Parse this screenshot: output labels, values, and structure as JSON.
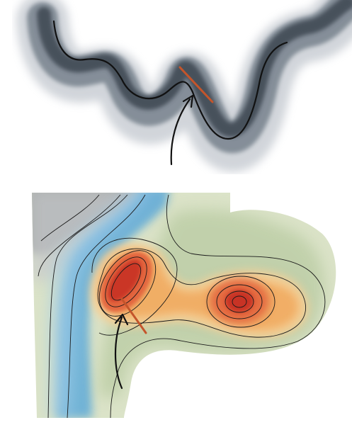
{
  "figure": {
    "panels": [
      {
        "id": "ribbon",
        "description_name": "ink-wash-ribbon",
        "colors": {
          "wash_dark": "#3c4651",
          "wash_mid": "#7d8792",
          "wash_light": "#c9ced4",
          "edge_line": "#111111",
          "marker": "#c4552b",
          "arrow": "#111111"
        }
      },
      {
        "id": "contour-map",
        "description_name": "watercolor-contour-map",
        "colors": {
          "hot_core": "#c62d20",
          "hot": "#e25f3a",
          "warm": "#f0a65a",
          "warm_light": "#f6cf95",
          "cool_green": "#b4c79c",
          "green_light": "#dbe3c8",
          "blue": "#4ea3da",
          "blue_light": "#9fcbe8",
          "grey": "#8a8d93",
          "contour": "#1a1a1a",
          "marker": "#c4552b",
          "arrow": "#111111"
        }
      }
    ]
  }
}
